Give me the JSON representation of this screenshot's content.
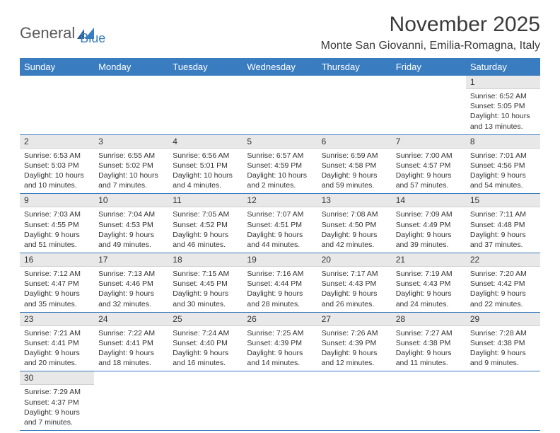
{
  "brand": {
    "part1": "General",
    "part2": "Blue"
  },
  "title": "November 2025",
  "location": "Monte San Giovanni, Emilia-Romagna, Italy",
  "colors": {
    "header_bg": "#3a7cc0",
    "header_text": "#ffffff",
    "daynum_bg": "#e8e8e8",
    "border": "#3a7cc0",
    "text": "#333333",
    "brand_gray": "#5a5a5a",
    "brand_blue": "#3a7cc0"
  },
  "weekdays": [
    "Sunday",
    "Monday",
    "Tuesday",
    "Wednesday",
    "Thursday",
    "Friday",
    "Saturday"
  ],
  "first_weekday_index": 6,
  "days": [
    {
      "n": 1,
      "sunrise": "6:52 AM",
      "sunset": "5:05 PM",
      "daylight": "10 hours and 13 minutes."
    },
    {
      "n": 2,
      "sunrise": "6:53 AM",
      "sunset": "5:03 PM",
      "daylight": "10 hours and 10 minutes."
    },
    {
      "n": 3,
      "sunrise": "6:55 AM",
      "sunset": "5:02 PM",
      "daylight": "10 hours and 7 minutes."
    },
    {
      "n": 4,
      "sunrise": "6:56 AM",
      "sunset": "5:01 PM",
      "daylight": "10 hours and 4 minutes."
    },
    {
      "n": 5,
      "sunrise": "6:57 AM",
      "sunset": "4:59 PM",
      "daylight": "10 hours and 2 minutes."
    },
    {
      "n": 6,
      "sunrise": "6:59 AM",
      "sunset": "4:58 PM",
      "daylight": "9 hours and 59 minutes."
    },
    {
      "n": 7,
      "sunrise": "7:00 AM",
      "sunset": "4:57 PM",
      "daylight": "9 hours and 57 minutes."
    },
    {
      "n": 8,
      "sunrise": "7:01 AM",
      "sunset": "4:56 PM",
      "daylight": "9 hours and 54 minutes."
    },
    {
      "n": 9,
      "sunrise": "7:03 AM",
      "sunset": "4:55 PM",
      "daylight": "9 hours and 51 minutes."
    },
    {
      "n": 10,
      "sunrise": "7:04 AM",
      "sunset": "4:53 PM",
      "daylight": "9 hours and 49 minutes."
    },
    {
      "n": 11,
      "sunrise": "7:05 AM",
      "sunset": "4:52 PM",
      "daylight": "9 hours and 46 minutes."
    },
    {
      "n": 12,
      "sunrise": "7:07 AM",
      "sunset": "4:51 PM",
      "daylight": "9 hours and 44 minutes."
    },
    {
      "n": 13,
      "sunrise": "7:08 AM",
      "sunset": "4:50 PM",
      "daylight": "9 hours and 42 minutes."
    },
    {
      "n": 14,
      "sunrise": "7:09 AM",
      "sunset": "4:49 PM",
      "daylight": "9 hours and 39 minutes."
    },
    {
      "n": 15,
      "sunrise": "7:11 AM",
      "sunset": "4:48 PM",
      "daylight": "9 hours and 37 minutes."
    },
    {
      "n": 16,
      "sunrise": "7:12 AM",
      "sunset": "4:47 PM",
      "daylight": "9 hours and 35 minutes."
    },
    {
      "n": 17,
      "sunrise": "7:13 AM",
      "sunset": "4:46 PM",
      "daylight": "9 hours and 32 minutes."
    },
    {
      "n": 18,
      "sunrise": "7:15 AM",
      "sunset": "4:45 PM",
      "daylight": "9 hours and 30 minutes."
    },
    {
      "n": 19,
      "sunrise": "7:16 AM",
      "sunset": "4:44 PM",
      "daylight": "9 hours and 28 minutes."
    },
    {
      "n": 20,
      "sunrise": "7:17 AM",
      "sunset": "4:43 PM",
      "daylight": "9 hours and 26 minutes."
    },
    {
      "n": 21,
      "sunrise": "7:19 AM",
      "sunset": "4:43 PM",
      "daylight": "9 hours and 24 minutes."
    },
    {
      "n": 22,
      "sunrise": "7:20 AM",
      "sunset": "4:42 PM",
      "daylight": "9 hours and 22 minutes."
    },
    {
      "n": 23,
      "sunrise": "7:21 AM",
      "sunset": "4:41 PM",
      "daylight": "9 hours and 20 minutes."
    },
    {
      "n": 24,
      "sunrise": "7:22 AM",
      "sunset": "4:41 PM",
      "daylight": "9 hours and 18 minutes."
    },
    {
      "n": 25,
      "sunrise": "7:24 AM",
      "sunset": "4:40 PM",
      "daylight": "9 hours and 16 minutes."
    },
    {
      "n": 26,
      "sunrise": "7:25 AM",
      "sunset": "4:39 PM",
      "daylight": "9 hours and 14 minutes."
    },
    {
      "n": 27,
      "sunrise": "7:26 AM",
      "sunset": "4:39 PM",
      "daylight": "9 hours and 12 minutes."
    },
    {
      "n": 28,
      "sunrise": "7:27 AM",
      "sunset": "4:38 PM",
      "daylight": "9 hours and 11 minutes."
    },
    {
      "n": 29,
      "sunrise": "7:28 AM",
      "sunset": "4:38 PM",
      "daylight": "9 hours and 9 minutes."
    },
    {
      "n": 30,
      "sunrise": "7:29 AM",
      "sunset": "4:37 PM",
      "daylight": "9 hours and 7 minutes."
    }
  ],
  "labels": {
    "sunrise": "Sunrise:",
    "sunset": "Sunset:",
    "daylight": "Daylight:"
  }
}
